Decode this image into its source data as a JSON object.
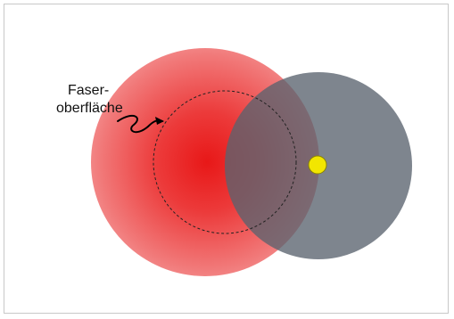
{
  "diagram": {
    "label_line1": "Faser-",
    "label_line2": "oberfläche",
    "colors": {
      "frame_border": "#c8c8c8",
      "red_core": "#e82020",
      "red_edge": "#f4a0a0",
      "gray_circle": "#5f6873",
      "yellow_dot": "#f2e600",
      "yellow_dot_stroke": "#8a8400",
      "dashed_outline": "#222222"
    }
  }
}
